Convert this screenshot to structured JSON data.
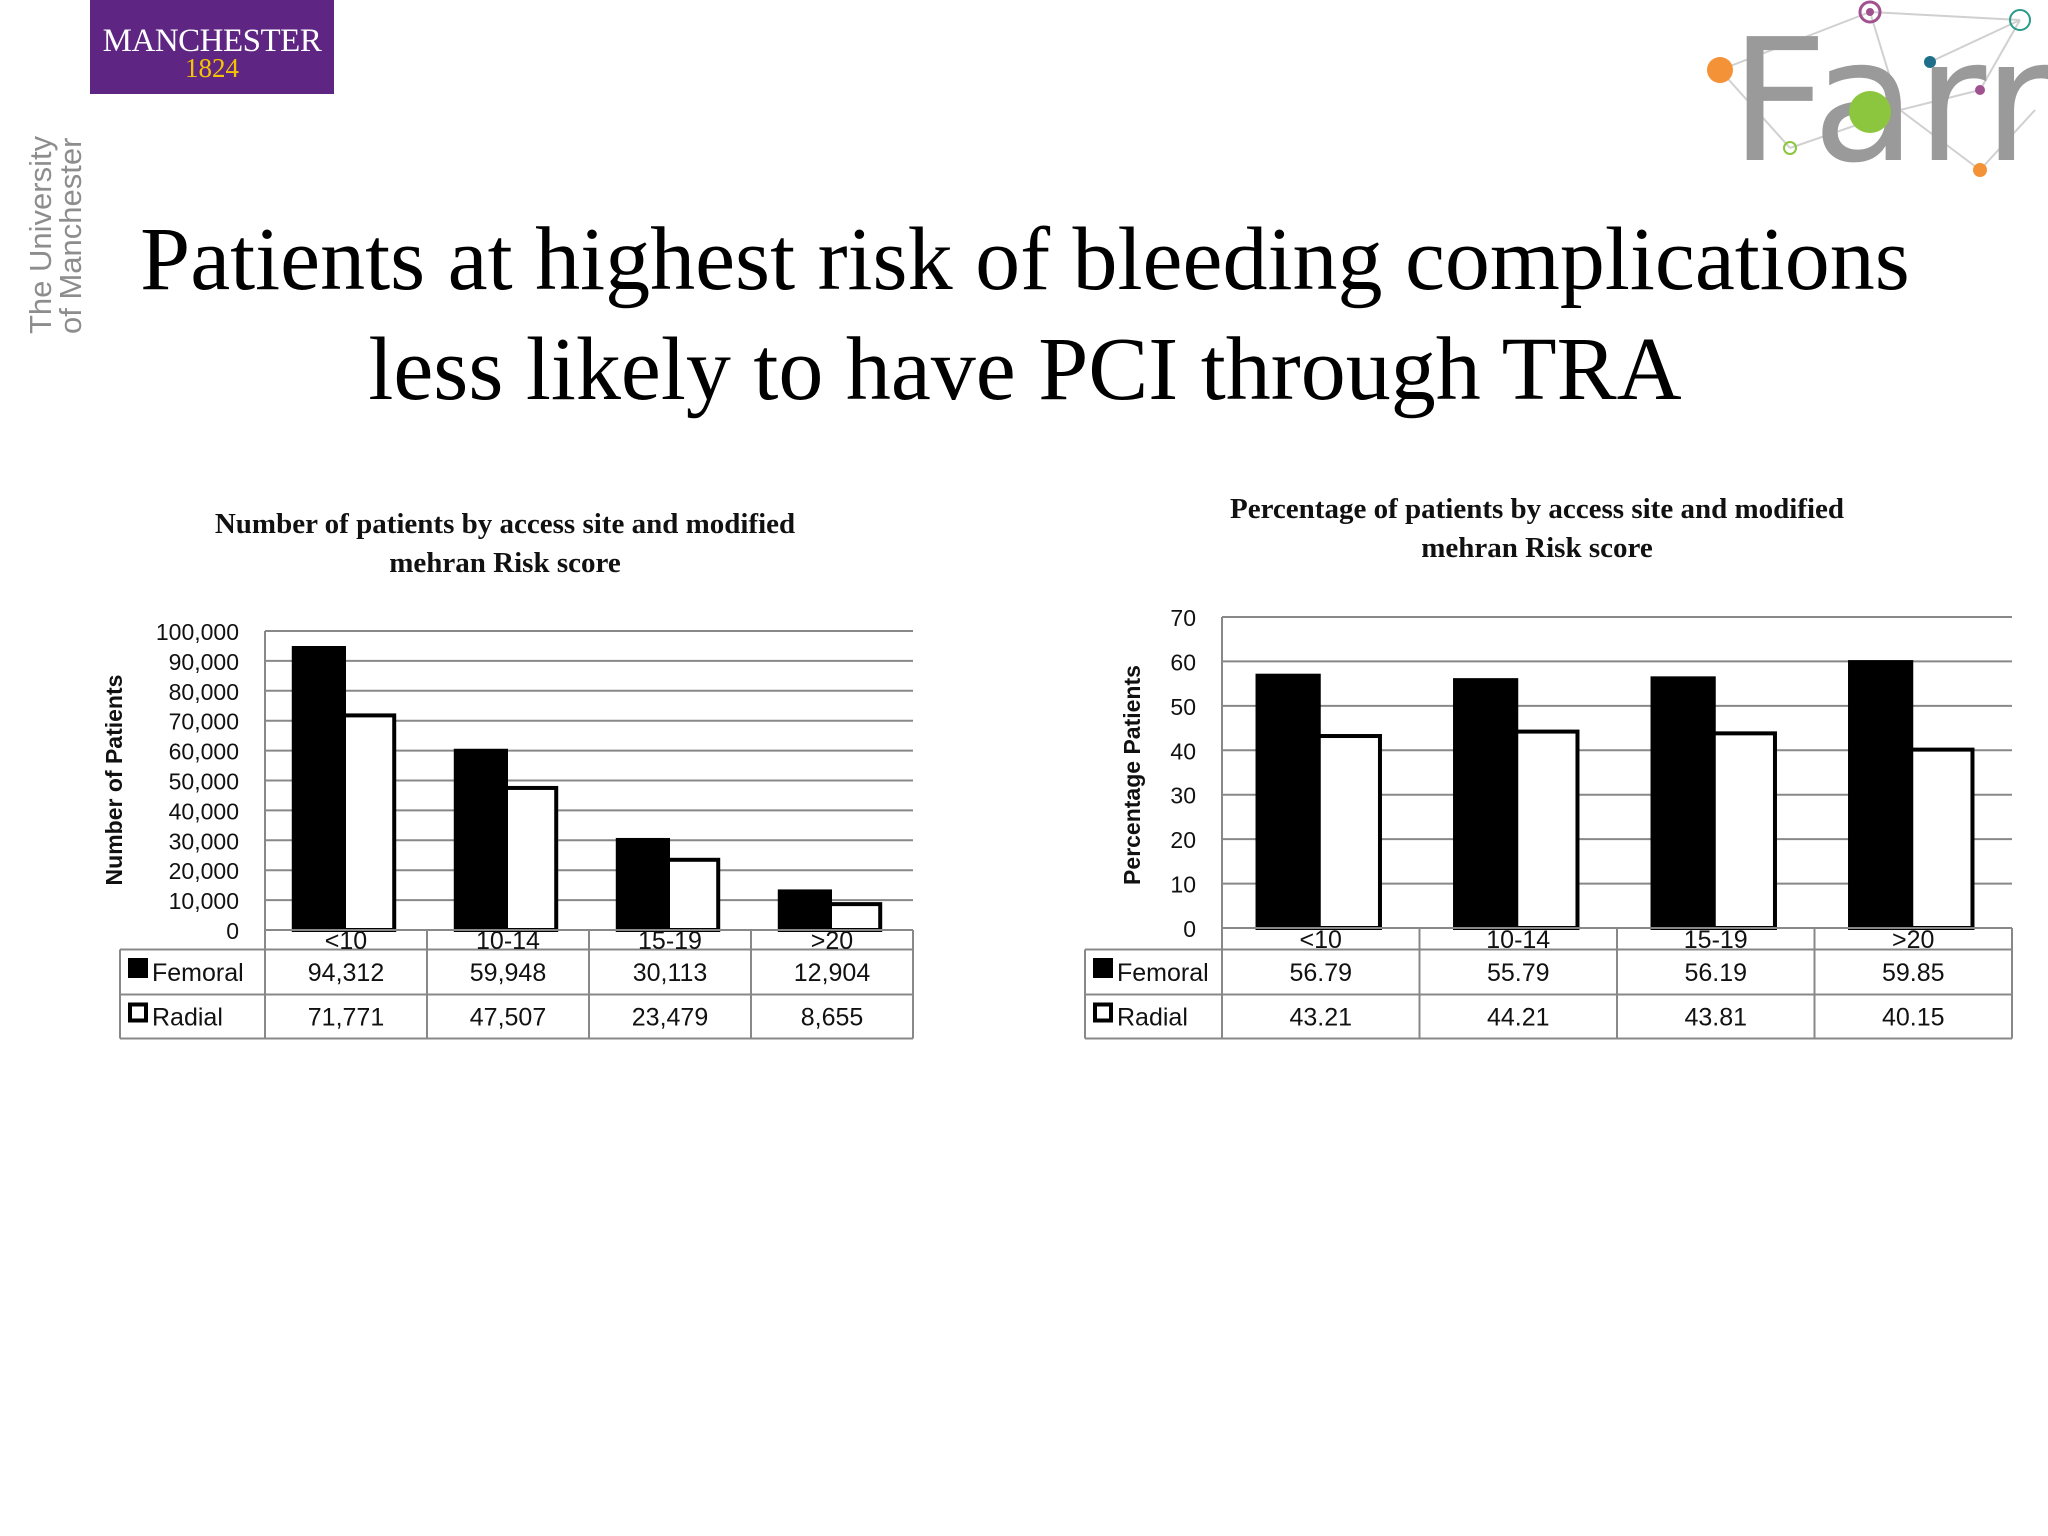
{
  "header": {
    "logo_word": "MANCHESTER",
    "logo_year": "1824",
    "university_line1": "The University",
    "university_line2": "of Manchester",
    "partner_logo": "Farr",
    "purple": "#5f2583",
    "gold": "#f5c400"
  },
  "slide": {
    "title_line1": "Patients at highest risk of bleeding complications",
    "title_line2": "less likely to have PCI through TRA"
  },
  "chart_data": [
    {
      "type": "bar",
      "title_lines": [
        "Number of patients by access site and modified",
        "mehran Risk score"
      ],
      "ylabel": "Number of Patients",
      "ylim": [
        0,
        100000
      ],
      "yticks": [
        "0",
        "10,000",
        "20,000",
        "30,000",
        "40,000",
        "50,000",
        "60,000",
        "70,000",
        "80,000",
        "90,000",
        "100,000"
      ],
      "categories": [
        "<10",
        "10-14",
        "15-19",
        ">20"
      ],
      "grid": true,
      "data_table": true,
      "series": [
        {
          "name": "Femoral",
          "values": [
            94312,
            59948,
            30113,
            12904
          ],
          "labels": [
            "94,312",
            "59,948",
            "30,113",
            "12,904"
          ],
          "fill": "#000000"
        },
        {
          "name": "Radial",
          "values": [
            71771,
            47507,
            23479,
            8655
          ],
          "labels": [
            "71,771",
            "47,507",
            "23,479",
            "8,655"
          ],
          "fill": "#ffffff"
        }
      ]
    },
    {
      "type": "bar",
      "title_lines": [
        "Percentage of patients by access site and modified",
        "mehran Risk score"
      ],
      "ylabel": "Percentage Patients",
      "ylim": [
        0,
        70
      ],
      "yticks": [
        "0",
        "10",
        "20",
        "30",
        "40",
        "50",
        "60",
        "70"
      ],
      "categories": [
        "<10",
        "10-14",
        "15-19",
        ">20"
      ],
      "grid": true,
      "data_table": true,
      "series": [
        {
          "name": "Femoral",
          "values": [
            56.79,
            55.79,
            56.19,
            59.85
          ],
          "labels": [
            "56.79",
            "55.79",
            "56.19",
            "59.85"
          ],
          "fill": "#000000"
        },
        {
          "name": "Radial",
          "values": [
            43.21,
            44.21,
            43.81,
            40.15
          ],
          "labels": [
            "43.21",
            "44.21",
            "43.81",
            "40.15"
          ],
          "fill": "#ffffff"
        }
      ]
    }
  ]
}
